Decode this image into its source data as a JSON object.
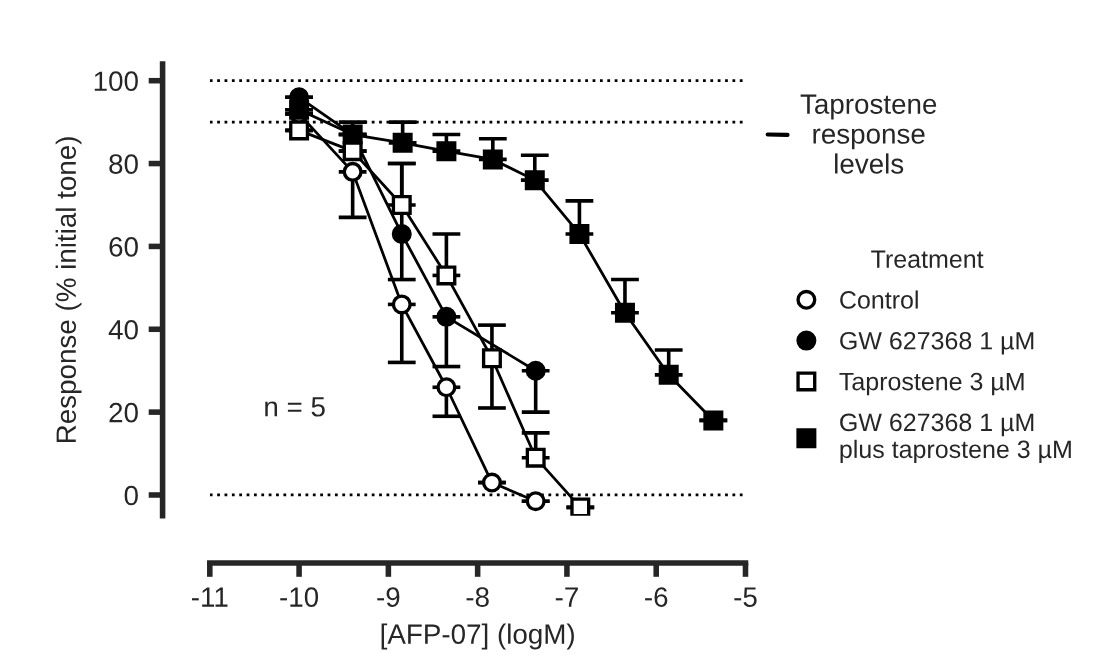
{
  "chart_data": {
    "type": "line",
    "xlabel": "[AFP-07] (logM)",
    "ylabel": "Response (% initial tone)",
    "legend_title": "Treatment",
    "legend": "right",
    "grid": false,
    "line_style": "solid",
    "xlim": [
      -11,
      -5
    ],
    "xticks": [
      -11,
      -10,
      -9,
      -8,
      -7,
      -6,
      -5
    ],
    "ylim": [
      -5,
      104
    ],
    "yticks": [
      0,
      20,
      40,
      60,
      80,
      100
    ],
    "series": [
      {
        "name": "Control",
        "marker": "circle",
        "color": "#ffffff",
        "x": [
          -10,
          -9.4,
          -8.85,
          -8.35,
          -7.84,
          -7.35
        ],
        "values": [
          92,
          78,
          46,
          26,
          3,
          -1.5
        ],
        "errors": [
          null,
          [
            67,
            78
          ],
          [
            32,
            46
          ],
          [
            19,
            26
          ],
          null,
          null
        ]
      },
      {
        "name": "GW 627368 1 µM",
        "marker": "circle",
        "color": "#000000",
        "x": [
          -10,
          -9.4,
          -8.85,
          -8.35,
          -7.35
        ],
        "values": [
          96,
          87,
          63,
          43,
          30
        ],
        "errors": [
          null,
          null,
          [
            52,
            80
          ],
          [
            31,
            43
          ],
          [
            20,
            30
          ]
        ]
      },
      {
        "name": "Taprostene 3 µM",
        "marker": "square",
        "color": "#ffffff",
        "x": [
          -10,
          -9.4,
          -8.85,
          -8.35,
          -7.84,
          -7.35,
          -6.85
        ],
        "values": [
          88,
          83,
          70,
          53,
          33,
          9,
          -3
        ],
        "errors": [
          null,
          null,
          [
            70,
            80
          ],
          [
            53,
            63
          ],
          [
            21,
            41
          ],
          [
            9,
            15
          ],
          null
        ]
      },
      {
        "name": "GW 627368 1 µM\nplus taprostene 3 µM",
        "marker": "square",
        "color": "#000000",
        "x": [
          -10,
          -9.4,
          -8.84,
          -8.35,
          -7.83,
          -7.36,
          -6.86,
          -6.35,
          -5.86,
          -5.36
        ],
        "values": [
          93,
          87,
          85,
          83,
          81,
          76,
          63,
          44,
          29,
          18
        ],
        "errors": [
          null,
          [
            87,
            90
          ],
          [
            85,
            90
          ],
          [
            83,
            87
          ],
          [
            81,
            86
          ],
          [
            76,
            82
          ],
          [
            63,
            71
          ],
          [
            44,
            52
          ],
          [
            29,
            35
          ],
          null
        ]
      }
    ],
    "ref_lines": [
      {
        "axis": "y",
        "value": 100,
        "line_style": "dotted"
      },
      {
        "axis": "y",
        "value": 90,
        "line_style": "dotted"
      },
      {
        "axis": "y",
        "value": 0,
        "line_style": "dotted"
      }
    ],
    "annotations": [
      "n = 5",
      "Taprostene\nresponse\nlevels"
    ]
  }
}
